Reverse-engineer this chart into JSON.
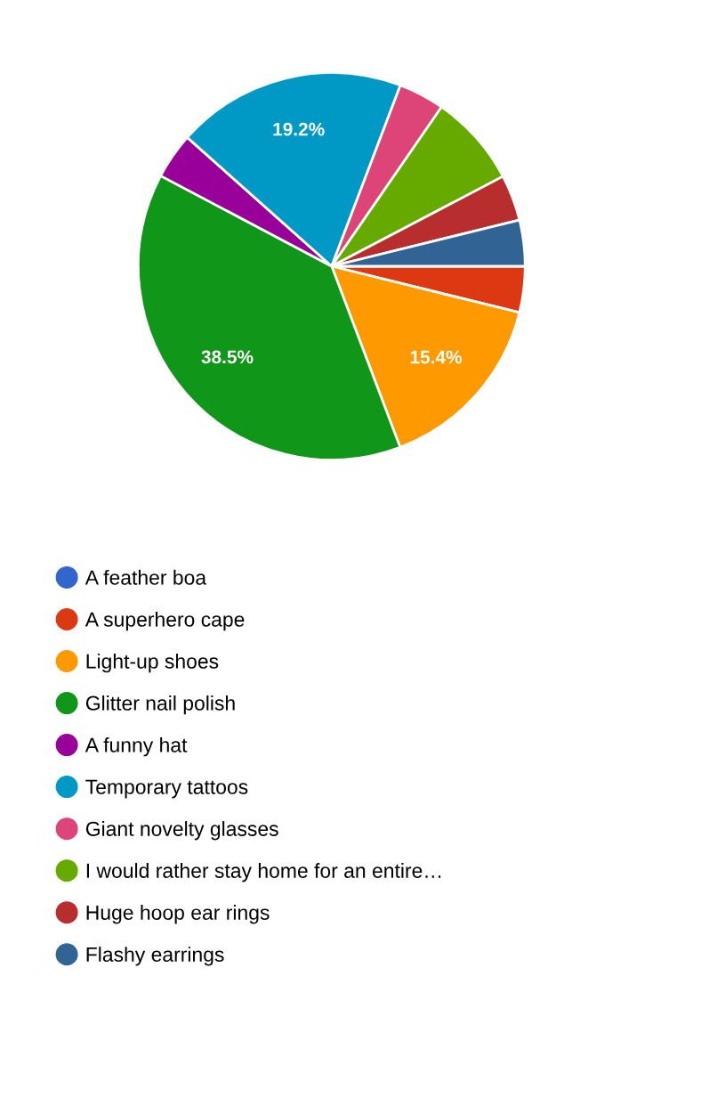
{
  "chart_data": {
    "type": "pie",
    "categories": [
      "A feather boa",
      "A superhero cape",
      "Light-up shoes",
      "Glitter nail polish",
      "A funny hat",
      "Temporary tattoos",
      "Giant novelty glasses",
      "I would rather stay home for an entire…",
      "Huge hoop ear rings",
      "Flashy earrings"
    ],
    "values": [
      0,
      3.84,
      15.4,
      38.5,
      3.84,
      19.2,
      3.84,
      7.7,
      3.84,
      3.84
    ],
    "value_labels": [
      null,
      null,
      "15.4%",
      "38.5%",
      null,
      "19.2%",
      null,
      null,
      null,
      null
    ],
    "colors": [
      "#3366cc",
      "#dc3912",
      "#ff9900",
      "#109618",
      "#990099",
      "#0099c6",
      "#dd4477",
      "#66aa00",
      "#b82e2e",
      "#316395"
    ],
    "legend": "bottom"
  }
}
